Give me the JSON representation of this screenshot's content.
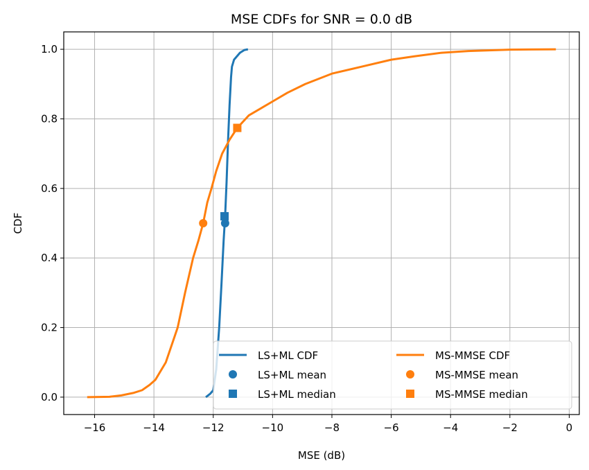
{
  "chart_data": {
    "type": "line",
    "title": "MSE CDFs for SNR = 0.0 dB",
    "xlabel": "MSE (dB)",
    "ylabel": "CDF",
    "xlim": [
      -17.04,
      0.34
    ],
    "ylim": [
      -0.05,
      1.05
    ],
    "xticks": [
      -16,
      -14,
      -12,
      -10,
      -8,
      -6,
      -4,
      -2,
      0
    ],
    "xtick_labels": [
      "−16",
      "−14",
      "−12",
      "−10",
      "−8",
      "−6",
      "−4",
      "−2",
      "0"
    ],
    "yticks": [
      0,
      0.2,
      0.4,
      0.6,
      0.8,
      1.0
    ],
    "ytick_labels": [
      "0.0",
      "0.2",
      "0.4",
      "0.6",
      "0.8",
      "1.0"
    ],
    "grid": true,
    "legend": {
      "position": "bottom-right",
      "columns": 2
    },
    "series": [
      {
        "name": "LS+ML CDF",
        "kind": "line",
        "color": "#1f77b4",
        "x": [
          -12.25,
          -12.1,
          -12.0,
          -11.9,
          -11.8,
          -11.72,
          -11.65,
          -11.6,
          -11.55,
          -11.5,
          -11.45,
          -11.4,
          -11.37,
          -11.3,
          -11.2,
          -11.1,
          -10.95,
          -10.83
        ],
        "y": [
          0.0,
          0.01,
          0.02,
          0.08,
          0.2,
          0.33,
          0.45,
          0.52,
          0.62,
          0.74,
          0.84,
          0.92,
          0.95,
          0.97,
          0.98,
          0.99,
          0.998,
          1.0
        ]
      },
      {
        "name": "LS+ML mean",
        "kind": "marker",
        "marker": "circle",
        "color": "#1f77b4",
        "x": [
          -11.6
        ],
        "y": [
          0.5
        ]
      },
      {
        "name": "LS+ML median",
        "kind": "marker",
        "marker": "square",
        "color": "#1f77b4",
        "x": [
          -11.62
        ],
        "y": [
          0.52
        ]
      },
      {
        "name": "MS-MMSE CDF",
        "kind": "line",
        "color": "#ff7f0e",
        "x": [
          -16.25,
          -15.5,
          -15.1,
          -14.7,
          -14.4,
          -14.15,
          -13.95,
          -13.6,
          -13.4,
          -13.2,
          -12.95,
          -12.68,
          -12.5,
          -12.34,
          -12.2,
          -12.06,
          -11.9,
          -11.7,
          -11.45,
          -11.19,
          -10.8,
          -10.4,
          -10.0,
          -9.5,
          -8.9,
          -8.0,
          -7.0,
          -6.0,
          -5.2,
          -4.3,
          -3.4,
          -2.0,
          -0.45
        ],
        "y": [
          0.0,
          0.001,
          0.005,
          0.012,
          0.02,
          0.035,
          0.05,
          0.1,
          0.15,
          0.2,
          0.3,
          0.4,
          0.45,
          0.5,
          0.56,
          0.6,
          0.65,
          0.7,
          0.74,
          0.774,
          0.81,
          0.83,
          0.85,
          0.875,
          0.9,
          0.93,
          0.95,
          0.97,
          0.98,
          0.99,
          0.995,
          0.999,
          1.0
        ]
      },
      {
        "name": "MS-MMSE mean",
        "kind": "marker",
        "marker": "circle",
        "color": "#ff7f0e",
        "x": [
          -12.34
        ],
        "y": [
          0.5
        ]
      },
      {
        "name": "MS-MMSE median",
        "kind": "marker",
        "marker": "square",
        "color": "#ff7f0e",
        "x": [
          -11.19
        ],
        "y": [
          0.774
        ]
      }
    ]
  }
}
